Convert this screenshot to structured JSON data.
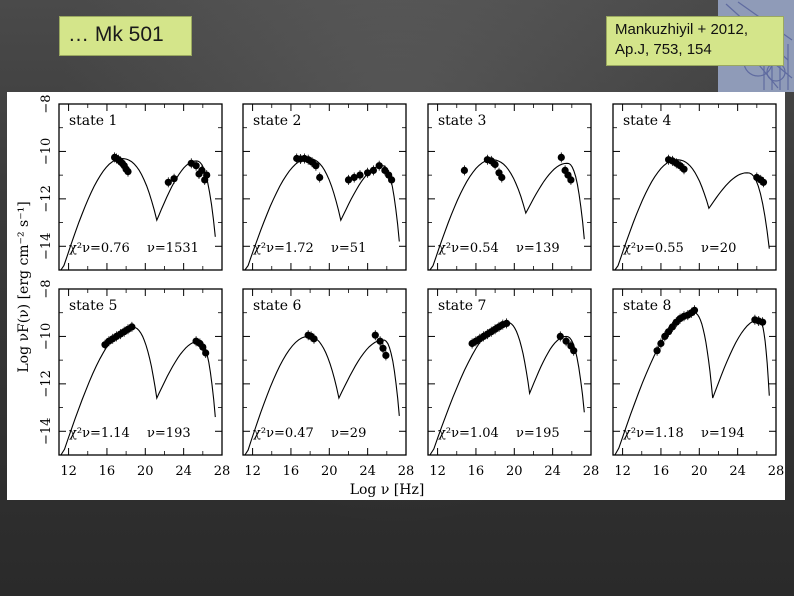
{
  "slide": {
    "title": "… Mk 501",
    "reference_line1": "Mankuzhiyil + 2012,",
    "reference_line2": "Ap.J, 753, 154"
  },
  "chart_data": {
    "type": "scatter",
    "title": "",
    "xlabel": "Log ν [Hz]",
    "ylabel": "Log νF(ν) [erg cm⁻² s⁻¹]",
    "xlim": [
      11,
      28
    ],
    "ylim": [
      -15,
      -8
    ],
    "xticks": [
      "12",
      "16",
      "20",
      "24",
      "28"
    ],
    "yticks": [
      "−8",
      "−10",
      "−12",
      "−14"
    ],
    "model": "SSC model curve (solid line) with observed SED points",
    "panels": [
      {
        "label": "state 1",
        "chi2": "χ²ν=0.76",
        "nu": "ν=1531",
        "sync_peak": [
          17.5,
          -10.3
        ],
        "ic_peak": [
          25.3,
          -10.4
        ],
        "dip": [
          21.2,
          -12.9
        ],
        "points": [
          [
            16.8,
            -10.25
          ],
          [
            17.0,
            -10.3
          ],
          [
            17.2,
            -10.35
          ],
          [
            17.4,
            -10.42
          ],
          [
            17.6,
            -10.5
          ],
          [
            17.8,
            -10.6
          ],
          [
            18.0,
            -10.75
          ],
          [
            18.2,
            -10.85
          ],
          [
            22.4,
            -11.3
          ],
          [
            23.0,
            -11.15
          ],
          [
            24.8,
            -10.5
          ],
          [
            25.3,
            -10.6
          ],
          [
            25.6,
            -10.95
          ],
          [
            25.9,
            -10.8
          ],
          [
            26.2,
            -11.2
          ],
          [
            26.4,
            -11.0
          ]
        ]
      },
      {
        "label": "state 2",
        "chi2": "χ²ν=1.72",
        "nu": "ν=51",
        "sync_peak": [
          17.8,
          -10.3
        ],
        "ic_peak": [
          25.5,
          -10.6
        ],
        "dip": [
          21.2,
          -12.9
        ],
        "points": [
          [
            16.6,
            -10.3
          ],
          [
            17.0,
            -10.32
          ],
          [
            17.4,
            -10.3
          ],
          [
            17.8,
            -10.35
          ],
          [
            18.2,
            -10.45
          ],
          [
            18.6,
            -10.6
          ],
          [
            19.0,
            -11.1
          ],
          [
            22.0,
            -11.2
          ],
          [
            22.6,
            -11.1
          ],
          [
            23.2,
            -11.0
          ],
          [
            24.0,
            -10.9
          ],
          [
            24.6,
            -10.8
          ],
          [
            25.2,
            -10.6
          ],
          [
            25.8,
            -10.8
          ],
          [
            26.2,
            -11.0
          ],
          [
            26.5,
            -11.2
          ]
        ]
      },
      {
        "label": "state 3",
        "chi2": "χ²ν=0.54",
        "nu": "ν=139",
        "sync_peak": [
          17.6,
          -10.35
        ],
        "ic_peak": [
          25.5,
          -10.5
        ],
        "dip": [
          21.2,
          -12.6
        ],
        "points": [
          [
            14.8,
            -10.8
          ],
          [
            17.2,
            -10.35
          ],
          [
            17.6,
            -10.4
          ],
          [
            18.0,
            -10.55
          ],
          [
            18.4,
            -10.9
          ],
          [
            18.7,
            -11.1
          ],
          [
            24.9,
            -10.25
          ],
          [
            25.3,
            -10.8
          ],
          [
            25.6,
            -11.0
          ],
          [
            25.9,
            -11.2
          ]
        ]
      },
      {
        "label": "state 4",
        "chi2": "χ²ν=0.55",
        "nu": "ν=20",
        "sync_peak": [
          17.6,
          -10.35
        ],
        "ic_peak": [
          25.0,
          -10.9
        ],
        "dip": [
          21.0,
          -12.4
        ],
        "points": [
          [
            16.8,
            -10.35
          ],
          [
            17.2,
            -10.4
          ],
          [
            17.6,
            -10.5
          ],
          [
            18.0,
            -10.6
          ],
          [
            18.4,
            -10.75
          ],
          [
            26.0,
            -11.1
          ],
          [
            26.4,
            -11.2
          ],
          [
            26.7,
            -11.3
          ]
        ]
      },
      {
        "label": "state 5",
        "chi2": "χ²ν=1.14",
        "nu": "ν=193",
        "sync_peak": [
          18.6,
          -9.6
        ],
        "ic_peak": [
          25.6,
          -10.2
        ],
        "dip": [
          21.2,
          -12.6
        ],
        "points": [
          [
            15.8,
            -10.35
          ],
          [
            16.2,
            -10.2
          ],
          [
            16.6,
            -10.1
          ],
          [
            17.0,
            -10.0
          ],
          [
            17.4,
            -9.9
          ],
          [
            17.8,
            -9.8
          ],
          [
            18.2,
            -9.7
          ],
          [
            18.6,
            -9.6
          ],
          [
            25.3,
            -10.2
          ],
          [
            25.7,
            -10.3
          ],
          [
            26.0,
            -10.45
          ],
          [
            26.3,
            -10.7
          ]
        ]
      },
      {
        "label": "state 6",
        "chi2": "χ²ν=0.47",
        "nu": "ν=29",
        "sync_peak": [
          17.8,
          -10.0
        ],
        "ic_peak": [
          25.6,
          -10.15
        ],
        "dip": [
          21.0,
          -12.6
        ],
        "points": [
          [
            17.8,
            -9.95
          ],
          [
            18.1,
            -10.0
          ],
          [
            18.4,
            -10.1
          ],
          [
            24.8,
            -9.95
          ],
          [
            25.3,
            -10.2
          ],
          [
            25.6,
            -10.5
          ],
          [
            25.9,
            -10.8
          ]
        ]
      },
      {
        "label": "state 7",
        "chi2": "χ²ν=1.04",
        "nu": "ν=195",
        "sync_peak": [
          19.2,
          -9.4
        ],
        "ic_peak": [
          25.4,
          -10.0
        ],
        "dip": [
          21.6,
          -12.4
        ],
        "points": [
          [
            15.6,
            -10.3
          ],
          [
            16.0,
            -10.2
          ],
          [
            16.4,
            -10.1
          ],
          [
            16.8,
            -10.0
          ],
          [
            17.2,
            -9.9
          ],
          [
            17.6,
            -9.8
          ],
          [
            18.0,
            -9.7
          ],
          [
            18.4,
            -9.6
          ],
          [
            18.8,
            -9.5
          ],
          [
            19.2,
            -9.45
          ],
          [
            24.8,
            -10.0
          ],
          [
            25.4,
            -10.2
          ],
          [
            25.9,
            -10.4
          ],
          [
            26.2,
            -10.6
          ]
        ]
      },
      {
        "label": "state 8",
        "chi2": "χ²ν=1.18",
        "nu": "ν=194",
        "sync_peak": [
          19.4,
          -9.0
        ],
        "ic_peak": [
          26.2,
          -9.3
        ],
        "dip": [
          21.4,
          -12.6
        ],
        "points": [
          [
            15.6,
            -10.6
          ],
          [
            16.0,
            -10.3
          ],
          [
            16.4,
            -10.0
          ],
          [
            16.8,
            -9.8
          ],
          [
            17.2,
            -9.6
          ],
          [
            17.6,
            -9.4
          ],
          [
            18.0,
            -9.25
          ],
          [
            18.4,
            -9.15
          ],
          [
            18.8,
            -9.1
          ],
          [
            19.2,
            -9.0
          ],
          [
            19.5,
            -8.9
          ],
          [
            25.8,
            -9.3
          ],
          [
            26.2,
            -9.35
          ],
          [
            26.6,
            -9.4
          ]
        ]
      }
    ]
  }
}
